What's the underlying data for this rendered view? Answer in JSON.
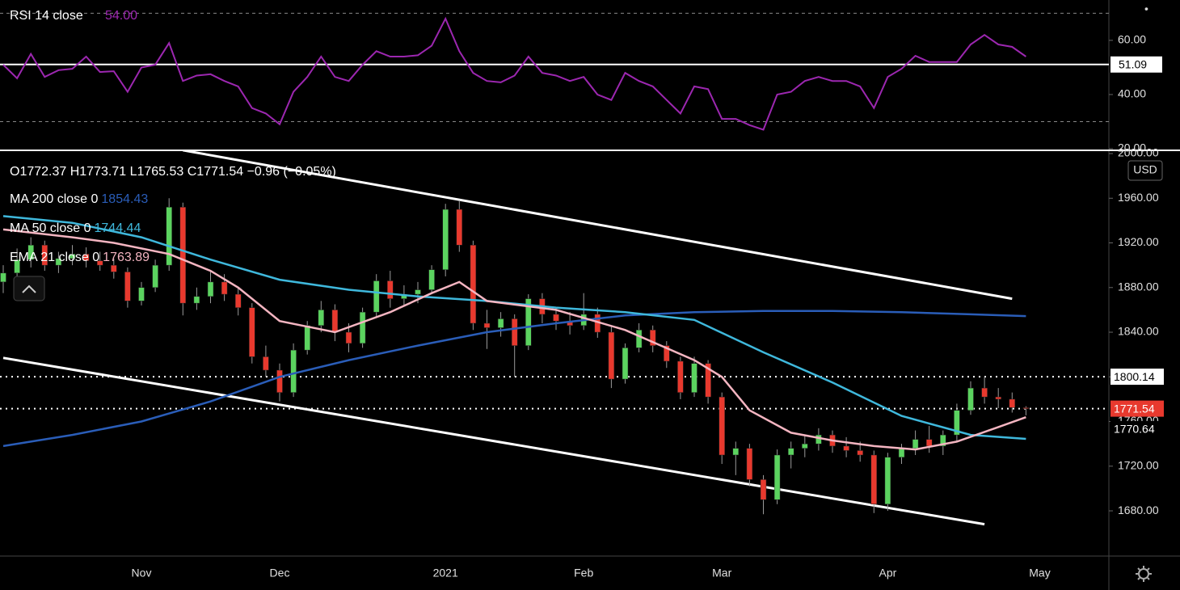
{
  "chart_data": [
    {
      "type": "line",
      "series": [
        {
          "name": "RSI 14 close",
          "color": "#9c27b0",
          "values": [
            51,
            46,
            55,
            46.5,
            49,
            49.5,
            54,
            48.3,
            48.6,
            41,
            50,
            51,
            59,
            45,
            47,
            47.5,
            45,
            43,
            35,
            33,
            29,
            41,
            46.5,
            54,
            46.5,
            45,
            51,
            56,
            54,
            54,
            54.5,
            58,
            68,
            56,
            48,
            45,
            44.5,
            47,
            54,
            48,
            47,
            45,
            46.5,
            40,
            38,
            48,
            45,
            43,
            38,
            33,
            43,
            42,
            31,
            31,
            28.7,
            27,
            40,
            41,
            45,
            46.5,
            45,
            45,
            43,
            35,
            46.5,
            49.5,
            54.3,
            52,
            52,
            52,
            58.5,
            62,
            58.5,
            57.6,
            54,
            null
          ]
        }
      ],
      "title_value": {
        "value": 54,
        "label": "54.00"
      },
      "ylim": [
        19.7,
        74.9
      ],
      "yticks": [
        {
          "value": 20,
          "label": "20.00"
        },
        {
          "value": 40,
          "label": "40.00"
        },
        {
          "value": 60,
          "label": "60.00"
        }
      ],
      "bands": [
        70,
        30
      ],
      "hline": 51.09
    },
    {
      "type": "candlestick",
      "header": "O1772.37 H1773.71 L1765.53 C1771.54 −0.96 (−0.05%)",
      "currency": "USD",
      "categories": [
        null,
        null,
        null,
        null,
        null,
        null,
        null,
        null,
        null,
        null,
        "Nov",
        null,
        null,
        null,
        null,
        null,
        null,
        null,
        null,
        null,
        "Dec",
        null,
        null,
        null,
        null,
        null,
        null,
        null,
        null,
        null,
        null,
        null,
        "2021",
        null,
        null,
        null,
        null,
        null,
        null,
        null,
        null,
        null,
        "Feb",
        null,
        null,
        null,
        null,
        null,
        null,
        null,
        null,
        null,
        "Mar",
        null,
        null,
        null,
        null,
        null,
        null,
        null,
        null,
        null,
        null,
        null,
        "Apr",
        null,
        null,
        null,
        null,
        null,
        null,
        null,
        null,
        null,
        null,
        "May"
      ],
      "ohlc": [
        [
          1885,
          1900,
          1875,
          1893
        ],
        [
          1893,
          1915,
          1888,
          1905
        ],
        [
          1905,
          1925,
          1898,
          1918
        ],
        [
          1918,
          1922,
          1895,
          1900
        ],
        [
          1900,
          1912,
          1893,
          1906
        ],
        [
          1906,
          1918,
          1900,
          1910
        ],
        [
          1910,
          1916,
          1898,
          1904
        ],
        [
          1904,
          1912,
          1895,
          1900
        ],
        [
          1900,
          1906,
          1888,
          1894
        ],
        [
          1894,
          1898,
          1862,
          1868
        ],
        [
          1868,
          1885,
          1864,
          1880
        ],
        [
          1880,
          1905,
          1876,
          1900
        ],
        [
          1900,
          1960,
          1895,
          1952
        ],
        [
          1952,
          1956,
          1855,
          1866
        ],
        [
          1866,
          1880,
          1860,
          1872
        ],
        [
          1872,
          1895,
          1866,
          1885
        ],
        [
          1885,
          1892,
          1868,
          1874
        ],
        [
          1874,
          1880,
          1855,
          1862
        ],
        [
          1862,
          1866,
          1812,
          1818
        ],
        [
          1818,
          1828,
          1800,
          1806
        ],
        [
          1806,
          1812,
          1778,
          1786
        ],
        [
          1786,
          1830,
          1782,
          1824
        ],
        [
          1824,
          1850,
          1820,
          1846
        ],
        [
          1846,
          1868,
          1840,
          1860
        ],
        [
          1860,
          1865,
          1832,
          1840
        ],
        [
          1840,
          1848,
          1822,
          1830
        ],
        [
          1830,
          1862,
          1826,
          1858
        ],
        [
          1858,
          1892,
          1854,
          1886
        ],
        [
          1886,
          1895,
          1862,
          1870
        ],
        [
          1870,
          1882,
          1864,
          1874
        ],
        [
          1874,
          1885,
          1866,
          1878
        ],
        [
          1878,
          1900,
          1874,
          1896
        ],
        [
          1896,
          1955,
          1890,
          1950
        ],
        [
          1950,
          1958,
          1912,
          1918
        ],
        [
          1918,
          1922,
          1842,
          1848
        ],
        [
          1848,
          1860,
          1825,
          1844
        ],
        [
          1844,
          1858,
          1836,
          1852
        ],
        [
          1852,
          1856,
          1800,
          1828
        ],
        [
          1828,
          1874,
          1824,
          1870
        ],
        [
          1870,
          1875,
          1848,
          1856
        ],
        [
          1856,
          1862,
          1842,
          1850
        ],
        [
          1850,
          1858,
          1838,
          1846
        ],
        [
          1846,
          1875,
          1842,
          1856
        ],
        [
          1856,
          1862,
          1835,
          1840
        ],
        [
          1840,
          1845,
          1790,
          1798
        ],
        [
          1798,
          1830,
          1794,
          1826
        ],
        [
          1826,
          1848,
          1822,
          1842
        ],
        [
          1842,
          1846,
          1822,
          1828
        ],
        [
          1828,
          1832,
          1808,
          1814
        ],
        [
          1814,
          1818,
          1780,
          1786
        ],
        [
          1786,
          1818,
          1782,
          1812
        ],
        [
          1812,
          1815,
          1776,
          1782
        ],
        [
          1782,
          1786,
          1722,
          1730
        ],
        [
          1730,
          1742,
          1712,
          1736
        ],
        [
          1736,
          1740,
          1702,
          1708
        ],
        [
          1708,
          1712,
          1677,
          1690
        ],
        [
          1690,
          1735,
          1686,
          1730
        ],
        [
          1730,
          1742,
          1718,
          1736
        ],
        [
          1736,
          1748,
          1728,
          1740
        ],
        [
          1740,
          1754,
          1734,
          1748
        ],
        [
          1748,
          1752,
          1732,
          1738
        ],
        [
          1738,
          1746,
          1728,
          1734
        ],
        [
          1734,
          1742,
          1724,
          1730
        ],
        [
          1730,
          1734,
          1678,
          1686
        ],
        [
          1686,
          1732,
          1680,
          1728
        ],
        [
          1728,
          1740,
          1722,
          1736
        ],
        [
          1736,
          1752,
          1730,
          1744
        ],
        [
          1744,
          1756,
          1732,
          1738
        ],
        [
          1738,
          1752,
          1730,
          1748
        ],
        [
          1748,
          1776,
          1742,
          1770
        ],
        [
          1770,
          1796,
          1766,
          1790
        ],
        [
          1790,
          1800,
          1776,
          1782
        ],
        [
          1782,
          1790,
          1772,
          1780
        ],
        [
          1780,
          1786,
          1768,
          1772.5
        ],
        [
          1772.37,
          1773.71,
          1765.53,
          1771.54
        ],
        null
      ],
      "up_color": "#5bd35f",
      "down_color": "#e8392e",
      "series": [
        {
          "name": "MA 200 close 0",
          "color": "#2a5db8",
          "x": [
            0,
            5,
            10,
            15,
            20,
            25,
            30,
            35,
            40,
            45,
            50,
            55,
            60,
            65,
            70,
            74
          ],
          "values": [
            1738,
            1748,
            1760,
            1778,
            1800,
            1815,
            1828,
            1840,
            1848,
            1855,
            1858,
            1859,
            1859,
            1858,
            1856,
            1854.43
          ]
        },
        {
          "name": "MA 50 close 0",
          "color": "#3fb8dc",
          "x": [
            0,
            5,
            10,
            15,
            20,
            25,
            30,
            35,
            40,
            45,
            50,
            55,
            60,
            65,
            70,
            74
          ],
          "values": [
            1944,
            1938,
            1925,
            1905,
            1887,
            1878,
            1872,
            1868,
            1862,
            1858,
            1851,
            1822,
            1795,
            1765,
            1748,
            1744.44
          ]
        },
        {
          "name": "EMA 21 close 0",
          "color": "#f4b5c1",
          "x": [
            0,
            5,
            8,
            12,
            15,
            17,
            20,
            24,
            28,
            31,
            33,
            35,
            40,
            45,
            50,
            52,
            54,
            57,
            60,
            63,
            66,
            69,
            72,
            74
          ],
          "values": [
            1932,
            1925,
            1920,
            1910,
            1895,
            1880,
            1850,
            1840,
            1858,
            1875,
            1885,
            1868,
            1860,
            1842,
            1815,
            1800,
            1770,
            1750,
            1743,
            1738,
            1735,
            1742,
            1755,
            1763.89
          ]
        }
      ],
      "trendlines": [
        {
          "x": [
            13,
            73
          ],
          "values": [
            2003,
            1870
          ]
        },
        {
          "x": [
            0,
            71
          ],
          "values": [
            1817,
            1668
          ]
        }
      ],
      "hlines": [
        1800.14,
        1771.54
      ],
      "price_labels": [
        1800.14,
        1771.54,
        1770.64
      ],
      "ylim": [
        1639.5,
        2002.9
      ],
      "yticks": [
        {
          "value": 1680,
          "label": "1680.00"
        },
        {
          "value": 1720,
          "label": "1720.00"
        },
        {
          "value": 1760,
          "label": "1760.00"
        },
        {
          "value": 1800,
          "label": "1800.00"
        },
        {
          "value": 1840,
          "label": "1840.00"
        },
        {
          "value": 1880,
          "label": "1880.00"
        },
        {
          "value": 1920,
          "label": "1920.00"
        },
        {
          "value": 1960,
          "label": "1960.00"
        },
        {
          "value": 2000,
          "label": "2000.00"
        }
      ]
    }
  ]
}
